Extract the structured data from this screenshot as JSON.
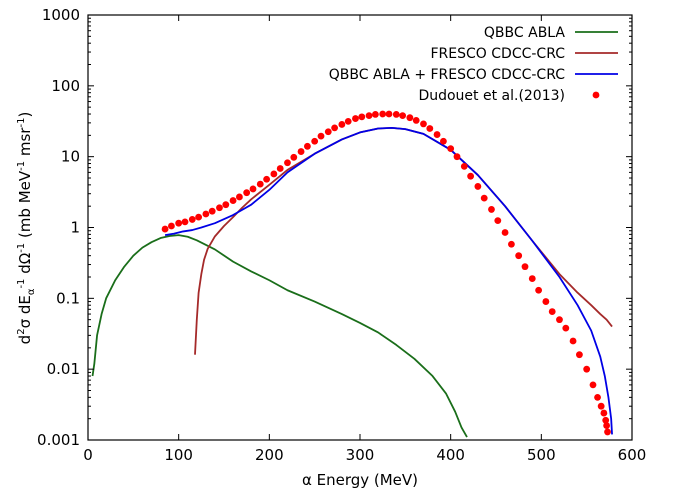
{
  "chart_data": {
    "type": "line",
    "title": "",
    "xlabel": "α Energy (MeV)",
    "ylabel_parts": {
      "d": "d",
      "sup2": "2",
      "sigma_dE": "σ dE",
      "sub_alpha": "α",
      "sup_m1a": "-1",
      "dOmega": " dΩ",
      "sup_m1b": "-1",
      "mb": " (mb MeV",
      "sup_m1c": "-1",
      "msr": " msr",
      "sup_m1d": "-1",
      "close": ")"
    },
    "xlim": [
      0,
      600
    ],
    "ylim": [
      0.001,
      1000
    ],
    "yscale": "log",
    "x_ticks": [
      0,
      100,
      200,
      300,
      400,
      500,
      600
    ],
    "x_tick_labels": [
      "0",
      "100",
      "200",
      "300",
      "400",
      "500",
      "600"
    ],
    "y_ticks": [
      0.001,
      0.01,
      0.1,
      1,
      10,
      100,
      1000
    ],
    "y_tick_labels": [
      "0.001",
      "0.01",
      "0.1",
      "1",
      "10",
      "100",
      "1000"
    ],
    "grid": false,
    "legend_position": "top-right",
    "series": [
      {
        "name": "QBBC ABLA",
        "style": "line",
        "color": "#1a6e1a",
        "x": [
          5,
          7,
          10,
          15,
          20,
          30,
          40,
          50,
          60,
          70,
          80,
          90,
          100,
          110,
          120,
          140,
          160,
          180,
          200,
          220,
          250,
          280,
          300,
          320,
          340,
          360,
          380,
          395,
          405,
          412,
          418
        ],
        "y": [
          0.008,
          0.012,
          0.03,
          0.06,
          0.1,
          0.18,
          0.28,
          0.4,
          0.52,
          0.62,
          0.71,
          0.76,
          0.78,
          0.74,
          0.66,
          0.49,
          0.33,
          0.24,
          0.18,
          0.13,
          0.09,
          0.06,
          0.045,
          0.033,
          0.022,
          0.014,
          0.008,
          0.0045,
          0.0025,
          0.0015,
          0.0011
        ]
      },
      {
        "name": "FRESCO CDCC-CRC",
        "style": "line",
        "color": "#a52a2a",
        "x": [
          118,
          120,
          122,
          125,
          128,
          132,
          140,
          150,
          160,
          170,
          180,
          200,
          220,
          250,
          280,
          300,
          320,
          335,
          350,
          370,
          400,
          430,
          460,
          490,
          520,
          540,
          555,
          565,
          572,
          578
        ],
        "y": [
          0.016,
          0.05,
          0.12,
          0.22,
          0.35,
          0.5,
          0.75,
          1.05,
          1.4,
          1.9,
          2.5,
          4.0,
          6.5,
          11.0,
          17.5,
          22.0,
          25.0,
          25.5,
          24.5,
          21.0,
          12.5,
          5.5,
          2.0,
          0.65,
          0.22,
          0.12,
          0.08,
          0.06,
          0.05,
          0.04
        ]
      },
      {
        "name": "QBBC ABLA + FRESCO CDCC-CRC",
        "style": "line",
        "color": "#0000e6",
        "x": [
          85,
          95,
          105,
          115,
          125,
          140,
          160,
          180,
          200,
          220,
          250,
          280,
          300,
          320,
          335,
          350,
          370,
          400,
          430,
          460,
          490,
          520,
          540,
          555,
          565,
          570,
          574,
          577,
          578
        ],
        "y": [
          0.78,
          0.82,
          0.88,
          0.92,
          1.0,
          1.15,
          1.5,
          2.1,
          3.4,
          6.0,
          11.0,
          17.5,
          22.0,
          25.0,
          25.5,
          24.5,
          21.0,
          12.5,
          5.5,
          2.0,
          0.65,
          0.2,
          0.08,
          0.035,
          0.015,
          0.008,
          0.004,
          0.002,
          0.0012
        ]
      },
      {
        "name": "Dudouet et al.(2013)",
        "style": "scatter",
        "color": "#ff0000",
        "x": [
          85,
          92,
          100,
          107,
          115,
          122,
          130,
          137,
          145,
          152,
          160,
          167,
          175,
          182,
          190,
          197,
          205,
          212,
          220,
          227,
          235,
          242,
          250,
          257,
          265,
          272,
          280,
          287,
          295,
          302,
          310,
          317,
          325,
          332,
          340,
          347,
          355,
          362,
          370,
          377,
          385,
          392,
          400,
          407,
          415,
          422,
          430,
          437,
          445,
          452,
          460,
          467,
          475,
          482,
          490,
          497,
          505,
          512,
          520,
          527,
          535,
          542,
          550,
          557,
          562,
          566,
          569,
          571,
          572,
          573
        ],
        "y": [
          0.95,
          1.05,
          1.15,
          1.2,
          1.3,
          1.4,
          1.55,
          1.7,
          1.9,
          2.1,
          2.4,
          2.7,
          3.1,
          3.5,
          4.1,
          4.8,
          5.7,
          6.8,
          8.2,
          9.8,
          11.8,
          14.0,
          16.5,
          19.5,
          22.5,
          25.5,
          28.5,
          31.5,
          34.5,
          36.5,
          38.0,
          39.5,
          40.0,
          40.0,
          39.5,
          38.0,
          35.5,
          32.5,
          29.0,
          25.0,
          20.5,
          16.5,
          13.0,
          10.0,
          7.3,
          5.3,
          3.8,
          2.6,
          1.8,
          1.25,
          0.85,
          0.58,
          0.4,
          0.28,
          0.19,
          0.13,
          0.09,
          0.065,
          0.05,
          0.038,
          0.025,
          0.016,
          0.01,
          0.006,
          0.004,
          0.003,
          0.0024,
          0.0019,
          0.0016,
          0.0013
        ]
      }
    ]
  }
}
